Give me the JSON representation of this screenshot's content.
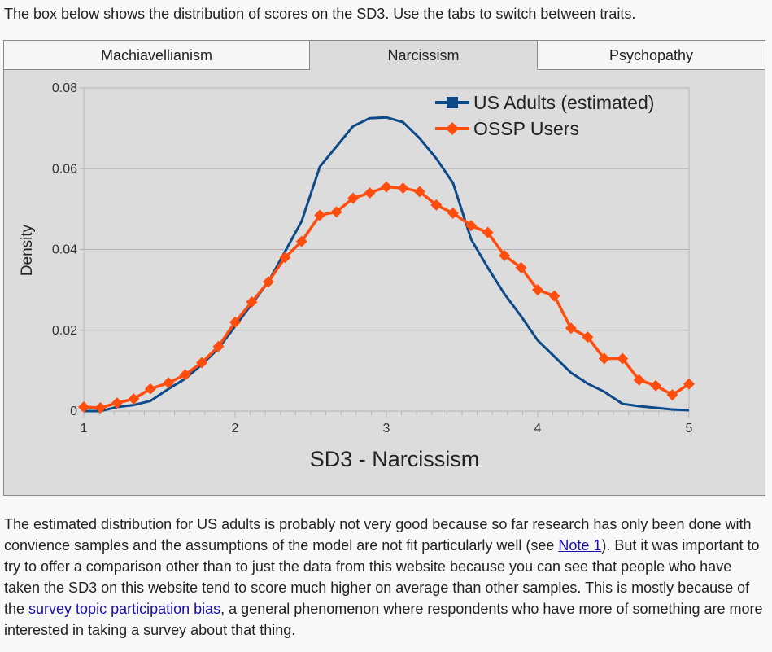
{
  "intro": "The box below shows the distribution of scores on the SD3. Use the tabs to switch between traits.",
  "tabs": [
    {
      "label": "Machiavellianism",
      "active": false
    },
    {
      "label": "Narcissism",
      "active": true
    },
    {
      "label": "Psychopathy",
      "active": false
    }
  ],
  "chart_data": {
    "type": "line",
    "title": "",
    "xlabel": "SD3 - Narcissism",
    "ylabel": "Density",
    "xlim": [
      1,
      5
    ],
    "ylim": [
      0,
      0.08
    ],
    "xticks": [
      "1",
      "2",
      "3",
      "4",
      "5"
    ],
    "yticks": [
      "0",
      "0.02",
      "0.04",
      "0.06",
      "0.08"
    ],
    "grid": true,
    "legend_position": "top-right",
    "series": [
      {
        "name": "US Adults (estimated)",
        "color": "#0d4a8a",
        "marker": "square",
        "x": [
          1,
          1.11,
          1.22,
          1.33,
          1.44,
          1.56,
          1.67,
          1.78,
          1.89,
          2.0,
          2.11,
          2.22,
          2.33,
          2.44,
          2.56,
          2.67,
          2.78,
          2.89,
          3.0,
          3.11,
          3.22,
          3.33,
          3.44,
          3.56,
          3.67,
          3.78,
          3.89,
          4.0,
          4.11,
          4.22,
          4.33,
          4.44,
          4.56,
          4.67,
          4.78,
          4.89,
          5.0
        ],
        "y": [
          0.0,
          0.0,
          0.001,
          0.0015,
          0.0025,
          0.0055,
          0.008,
          0.0115,
          0.0155,
          0.021,
          0.0265,
          0.032,
          0.0395,
          0.047,
          0.0605,
          0.0655,
          0.0705,
          0.0725,
          0.0727,
          0.0715,
          0.0675,
          0.0625,
          0.0565,
          0.0425,
          0.0355,
          0.029,
          0.0235,
          0.0175,
          0.0135,
          0.0095,
          0.0068,
          0.0048,
          0.0018,
          0.0012,
          0.0008,
          0.0004,
          0.0002
        ]
      },
      {
        "name": "OSSP Users",
        "color": "#ff4d0d",
        "marker": "diamond",
        "x": [
          1,
          1.11,
          1.22,
          1.33,
          1.44,
          1.56,
          1.67,
          1.78,
          1.89,
          2.0,
          2.11,
          2.22,
          2.33,
          2.44,
          2.56,
          2.67,
          2.78,
          2.89,
          3.0,
          3.11,
          3.22,
          3.33,
          3.44,
          3.56,
          3.67,
          3.78,
          3.89,
          4.0,
          4.11,
          4.22,
          4.33,
          4.44,
          4.56,
          4.67,
          4.78,
          4.89,
          5.0
        ],
        "y": [
          0.001,
          0.0008,
          0.002,
          0.003,
          0.0055,
          0.007,
          0.009,
          0.012,
          0.016,
          0.022,
          0.027,
          0.032,
          0.038,
          0.042,
          0.0485,
          0.0493,
          0.0527,
          0.054,
          0.0555,
          0.0552,
          0.0543,
          0.051,
          0.049,
          0.0459,
          0.0442,
          0.0385,
          0.0355,
          0.03,
          0.0285,
          0.0205,
          0.0183,
          0.013,
          0.013,
          0.0077,
          0.0063,
          0.004,
          0.0067
        ]
      }
    ]
  },
  "description": {
    "part1": "The estimated distribution for US adults is probably not very good because so far research has only been done with convience samples and the assumptions of the model are not fit particularly well (see ",
    "link1": "Note 1",
    "part2": "). But it was important to try to offer a comparison other than to just the data from this website because you can see that people who have taken the SD3 on this website tend to score much higher on average than other samples. This is mostly because of the ",
    "link2": "survey topic participation bias",
    "part3": ", a general phenomenon where respondents who have more of something are more interested in taking a survey about that thing."
  }
}
